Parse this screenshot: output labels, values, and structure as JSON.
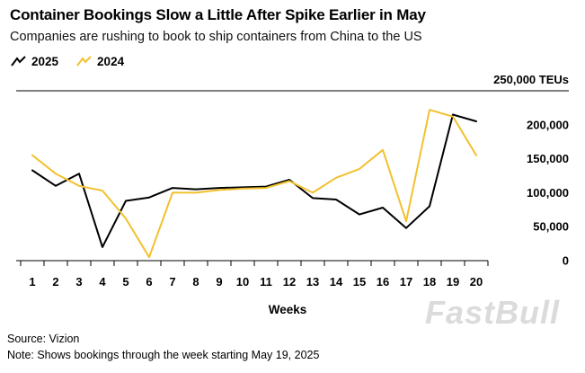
{
  "header": {
    "title": "Container Bookings Slow a Little After Spike Earlier in May",
    "subtitle": "Companies are rushing to book to ship containers from China to the US"
  },
  "legend": {
    "items": [
      {
        "label": "2025",
        "color": "#000000"
      },
      {
        "label": "2024",
        "color": "#F2C12E"
      }
    ]
  },
  "chart_data": {
    "type": "line",
    "x": [
      1,
      2,
      3,
      4,
      5,
      6,
      7,
      8,
      9,
      10,
      11,
      12,
      13,
      14,
      15,
      16,
      17,
      18,
      19,
      20
    ],
    "series": [
      {
        "name": "2025",
        "color": "#000000",
        "values": [
          133000,
          110000,
          128000,
          20000,
          88000,
          93000,
          107000,
          105000,
          107000,
          108000,
          109000,
          119000,
          92000,
          90000,
          68000,
          78000,
          48000,
          80000,
          215000,
          205000
        ]
      },
      {
        "name": "2024",
        "color": "#F2C12E",
        "values": [
          155000,
          128000,
          110000,
          103000,
          62000,
          5000,
          100000,
          100000,
          104000,
          106000,
          107000,
          117000,
          100000,
          122000,
          135000,
          163000,
          58000,
          222000,
          212000,
          155000
        ]
      }
    ],
    "xlabel": "Weeks",
    "ylabel": "TEUs",
    "ylim": [
      0,
      250000
    ],
    "yticks": [
      0,
      50000,
      100000,
      150000,
      200000,
      250000
    ],
    "ytick_labels": [
      "0",
      "50,000",
      "100,000",
      "150,000",
      "200,000",
      "250,000 TEUs"
    ],
    "legend_position": "top-left",
    "grid": false
  },
  "footer": {
    "source": "Source: Vizion",
    "note": "Note: Shows bookings through the week starting May 19, 2025"
  },
  "watermark": "FastBull"
}
